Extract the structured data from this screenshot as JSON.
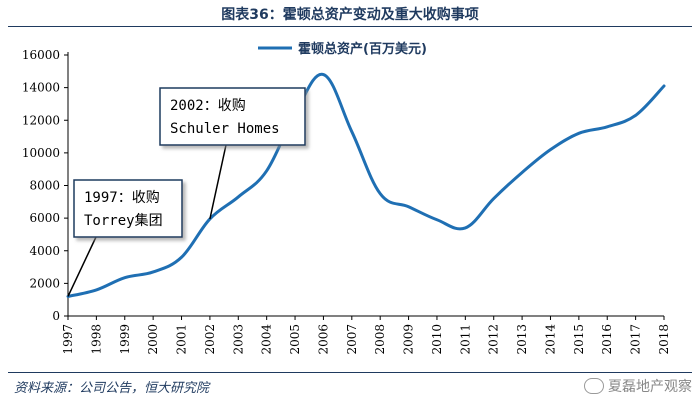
{
  "header": {
    "title": "图表36：霍顿总资产变动及重大收购事项"
  },
  "footer": {
    "source": "资料来源：公司公告，恒大研究院",
    "watermark": "夏磊地产观察"
  },
  "colors": {
    "line": "#1f6fb3",
    "axis": "#000000",
    "text": "#1f3a5f"
  },
  "chart_data": {
    "type": "line",
    "title": "霍顿总资产变动及重大收购事项",
    "xlabel": "",
    "ylabel": "",
    "ylim": [
      0,
      16000
    ],
    "yticks": [
      "0",
      "2000",
      "4000",
      "6000",
      "8000",
      "10000",
      "12000",
      "14000",
      "16000"
    ],
    "categories": [
      "1997",
      "1998",
      "1999",
      "2000",
      "2001",
      "2002",
      "2003",
      "2004",
      "2005",
      "2006",
      "2007",
      "2008",
      "2009",
      "2010",
      "2011",
      "2012",
      "2013",
      "2014",
      "2015",
      "2016",
      "2017",
      "2018"
    ],
    "series": [
      {
        "name": "霍顿总资产(百万美元)",
        "values": [
          1200,
          1600,
          2350,
          2700,
          3600,
          5950,
          7300,
          8900,
          12400,
          14800,
          11300,
          7500,
          6700,
          5900,
          5400,
          7200,
          8800,
          10200,
          11200,
          11600,
          12300,
          14100
        ]
      }
    ],
    "legend": {
      "position": "top-center",
      "label": "霍顿总资产(百万美元)"
    },
    "annotations": [
      {
        "line1": "1997：收购",
        "line2": "Torrey集团",
        "year": "1997",
        "value": 1200
      },
      {
        "line1": "2002：收购",
        "line2": "Schuler Homes",
        "year": "2002",
        "value": 5950
      }
    ],
    "grid": false
  }
}
